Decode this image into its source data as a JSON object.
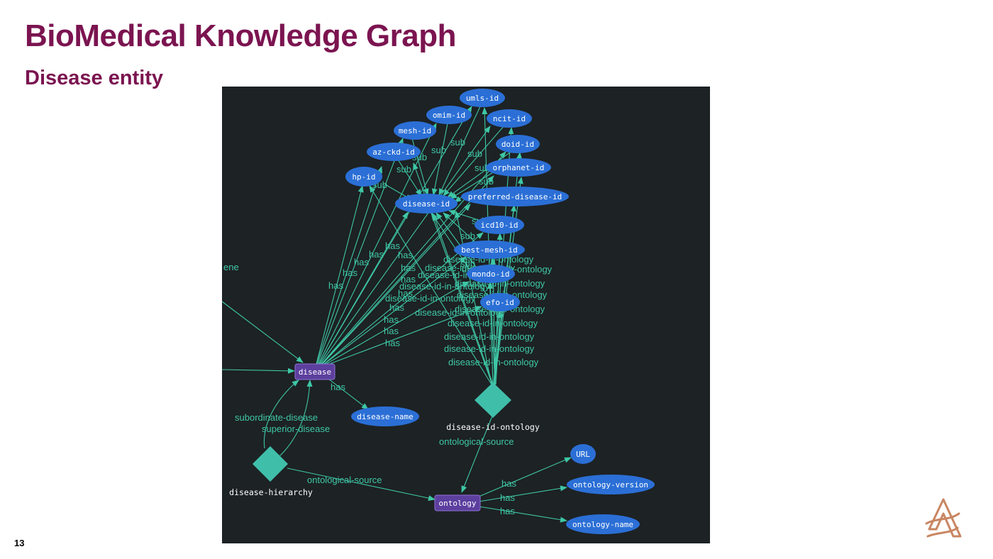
{
  "slide": {
    "title": "BioMedical Knowledge Graph",
    "subtitle": "Disease entity",
    "page_number": "13"
  },
  "graph": {
    "nodes": {
      "umls_id": "umls-id",
      "omim_id": "omim-id",
      "ncit_id": "ncit-id",
      "mesh_id": "mesh-id",
      "doid_id": "doid-id",
      "az_ckd_id": "az-ckd-id",
      "orphanet_id": "orphanet-id",
      "hp_id": "hp-id",
      "disease_id": "disease-id",
      "preferred_disease_id": "preferred-disease-id",
      "icd10_id": "icd10-id",
      "best_mesh_id": "best-mesh-id",
      "mondo_id": "mondo-id",
      "efo_id": "efo-id",
      "disease": "disease",
      "disease_name": "disease-name",
      "disease_id_ontology": "disease-id-ontology",
      "disease_hierarchy": "disease-hierarchy",
      "ontology": "ontology",
      "url": "URL",
      "ontology_version": "ontology-version",
      "ontology_name": "ontology-name",
      "gene_partial": "ene"
    },
    "edge_labels": {
      "sub": "sub",
      "has": "has",
      "disease_id_in_ontology": "disease-id-in-ontology",
      "subordinate_disease": "subordinate-disease",
      "superior_disease": "superior-disease",
      "ontological_source": "ontological-source"
    }
  },
  "colors": {
    "title": "#7b1450",
    "graph_background": "#1d2224",
    "edge": "#3ec7a6",
    "oval_node": "#2b6fd6",
    "rect_node": "#5c3f9e",
    "diamond_node": "#3fbfaa",
    "logo": "#c98662"
  },
  "icons": {
    "logo": "company-logo-icon"
  }
}
